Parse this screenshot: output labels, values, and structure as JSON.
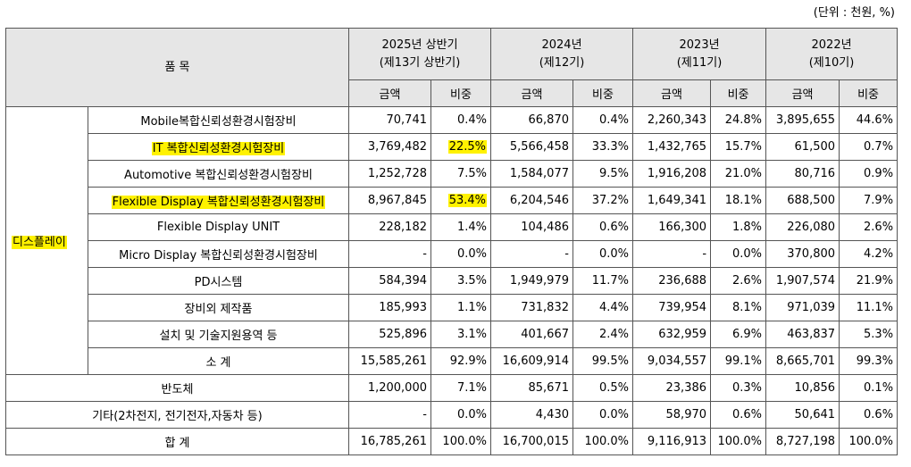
{
  "unit_note": "(단위 : 천원, %)",
  "header": {
    "item": "품 목",
    "periods": [
      {
        "line1": "2025년 상반기",
        "line2": "(제13기 상반기)"
      },
      {
        "line1": "2024년",
        "line2": "(제12기)"
      },
      {
        "line1": "2023년",
        "line2": "(제11기)"
      },
      {
        "line1": "2022년",
        "line2": "(제10기)"
      }
    ],
    "amount": "금액",
    "ratio": "비중"
  },
  "category": "디스플레이",
  "display_rows": [
    {
      "name": "Mobile복합신뢰성환경시험장비",
      "v": [
        "70,741",
        "0.4%",
        "66,870",
        "0.4%",
        "2,260,343",
        "24.8%",
        "3,895,655",
        "44.6%"
      ]
    },
    {
      "name": "IT 복합신뢰성환경시험장비",
      "v": [
        "3,769,482",
        "22.5%",
        "5,566,458",
        "33.3%",
        "1,432,765",
        "15.7%",
        "61,500",
        "0.7%"
      ]
    },
    {
      "name": "Automotive 복합신뢰성환경시험장비",
      "v": [
        "1,252,728",
        "7.5%",
        "1,584,077",
        "9.5%",
        "1,916,208",
        "21.0%",
        "80,716",
        "0.9%"
      ]
    },
    {
      "name": "Flexible Display 복합신뢰성환경시험장비",
      "v": [
        "8,967,845",
        "53.4%",
        "6,204,546",
        "37.2%",
        "1,649,341",
        "18.1%",
        "688,500",
        "7.9%"
      ]
    },
    {
      "name": "Flexible Display UNIT",
      "v": [
        "228,182",
        "1.4%",
        "104,486",
        "0.6%",
        "166,300",
        "1.8%",
        "226,080",
        "2.6%"
      ]
    },
    {
      "name": "Micro Display 복합신뢰성환경시험장비",
      "v": [
        "-",
        "0.0%",
        "-",
        "0.0%",
        "-",
        "0.0%",
        "370,800",
        "4.2%"
      ]
    },
    {
      "name": "PD시스템",
      "v": [
        "584,394",
        "3.5%",
        "1,949,979",
        "11.7%",
        "236,688",
        "2.6%",
        "1,907,574",
        "21.9%"
      ]
    },
    {
      "name": "장비외 제작품",
      "v": [
        "185,993",
        "1.1%",
        "731,832",
        "4.4%",
        "739,954",
        "8.1%",
        "971,039",
        "11.1%"
      ]
    },
    {
      "name": "설치 및 기술지원용역 등",
      "v": [
        "525,896",
        "3.1%",
        "401,667",
        "2.4%",
        "632,959",
        "6.9%",
        "463,837",
        "5.3%"
      ]
    },
    {
      "name": "소 계",
      "v": [
        "15,585,261",
        "92.9%",
        "16,609,914",
        "99.5%",
        "9,034,557",
        "99.1%",
        "8,665,701",
        "99.3%"
      ]
    }
  ],
  "other_rows": [
    {
      "name": "반도체",
      "v": [
        "1,200,000",
        "7.1%",
        "85,671",
        "0.5%",
        "23,386",
        "0.3%",
        "10,856",
        "0.1%"
      ]
    },
    {
      "name": "기타(2차전지, 전기전자,자동차 등)",
      "v": [
        "-",
        "0.0%",
        "4,430",
        "0.0%",
        "58,970",
        "0.6%",
        "50,641",
        "0.6%"
      ]
    },
    {
      "name": "합 계",
      "v": [
        "16,785,261",
        "100.0%",
        "16,700,015",
        "100.0%",
        "9,116,913",
        "100.0%",
        "8,727,198",
        "100.0%"
      ]
    }
  ]
}
